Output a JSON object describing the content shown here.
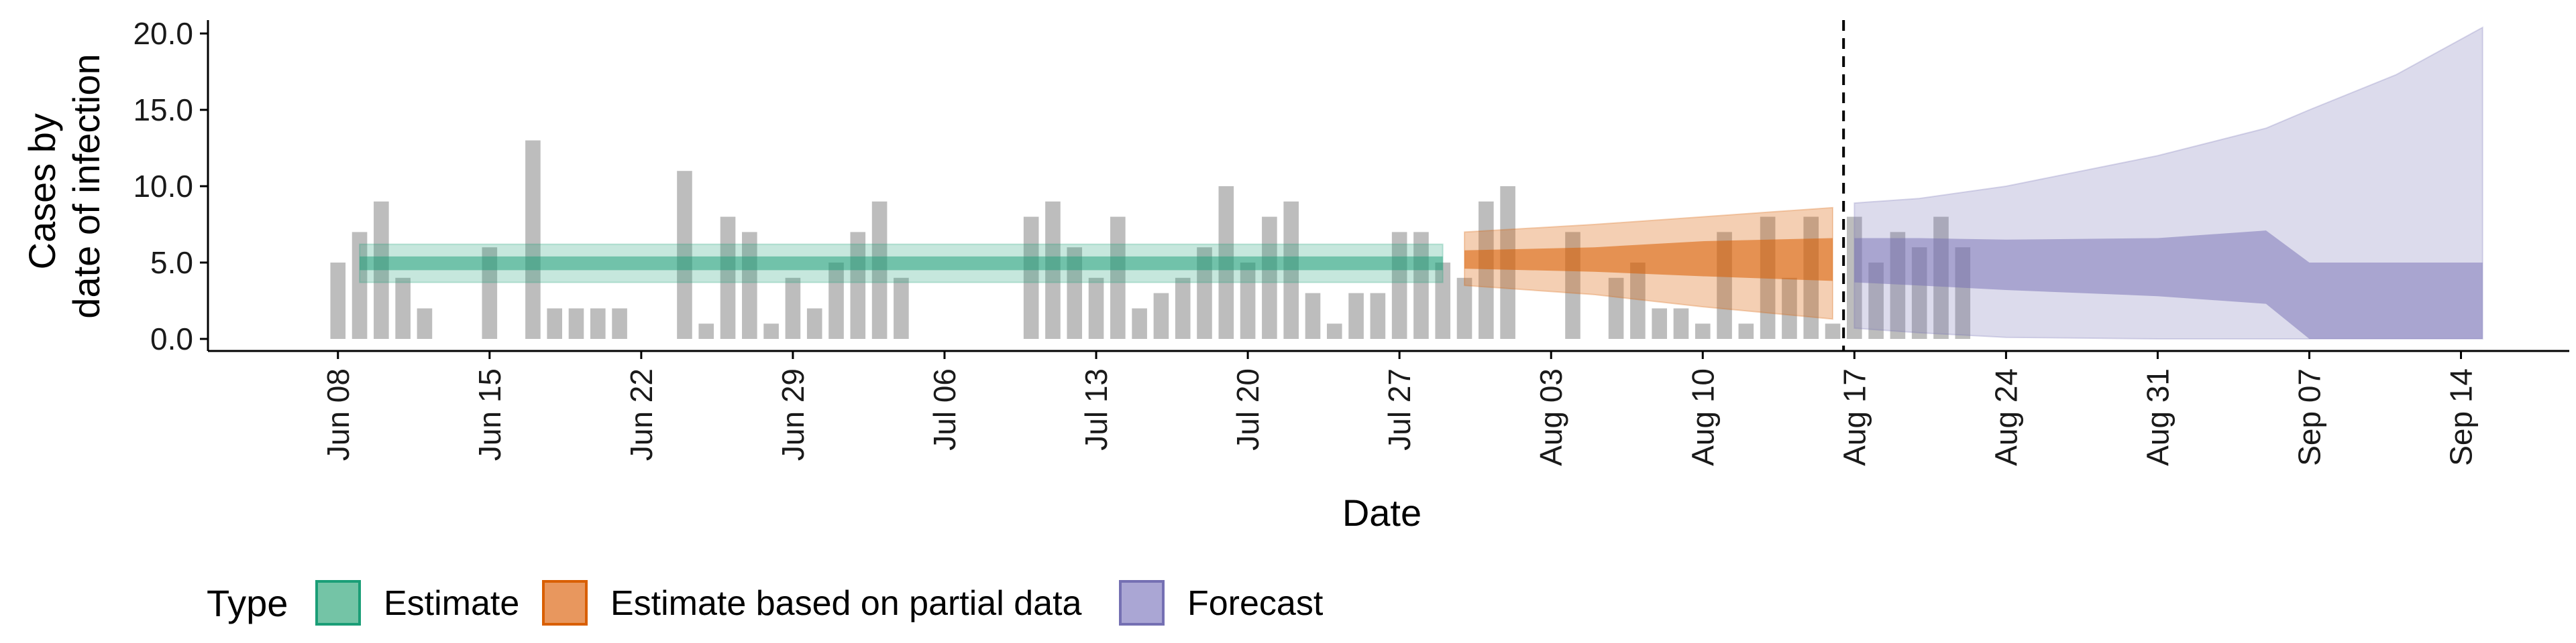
{
  "chart_data": {
    "type": "bar",
    "xlabel": "Date",
    "ylabel_lines": [
      "Cases by",
      "date of infection"
    ],
    "ylim": [
      0,
      21
    ],
    "xlim_dates": [
      "2020-06-02",
      "2020-09-19"
    ],
    "y_ticks": [
      "0.0",
      "5.0",
      "10.0",
      "15.0",
      "20.0"
    ],
    "x_ticks": [
      "Jun 08",
      "Jun 15",
      "Jun 22",
      "Jun 29",
      "Jul 06",
      "Jul 13",
      "Jul 20",
      "Jul 27",
      "Aug 03",
      "Aug 10",
      "Aug 17",
      "Aug 24",
      "Aug 31",
      "Sep 07",
      "Sep 14"
    ],
    "x_tick_dates": [
      "2020-06-08",
      "2020-06-15",
      "2020-06-22",
      "2020-06-29",
      "2020-07-06",
      "2020-07-13",
      "2020-07-20",
      "2020-07-27",
      "2020-08-03",
      "2020-08-10",
      "2020-08-17",
      "2020-08-24",
      "2020-08-31",
      "2020-09-07",
      "2020-09-14"
    ],
    "forecast_start_date": "2020-08-16",
    "grid": false,
    "legend_placement": "bottom-left",
    "reported_cases": {
      "start_date": "2020-06-08",
      "bar_color": "#bdbdbd",
      "values": [
        5,
        7,
        9,
        4,
        2,
        0,
        0,
        6,
        0,
        13,
        2,
        2,
        2,
        2,
        0,
        0,
        11,
        1,
        8,
        7,
        1,
        4,
        2,
        5,
        7,
        9,
        4,
        0,
        0,
        0,
        0,
        0,
        8,
        9,
        6,
        4,
        8,
        2,
        3,
        4,
        6,
        10,
        5,
        8,
        9,
        3,
        1,
        3,
        3,
        7,
        7,
        5,
        4,
        9,
        10,
        0,
        0,
        7,
        0,
        4,
        5,
        2,
        2,
        1,
        7,
        1,
        8,
        4,
        8,
        1,
        8,
        5,
        7,
        6,
        8,
        6
      ]
    },
    "series": [
      {
        "name": "Estimate",
        "color": "#1b9e77",
        "start_date": "2020-06-09",
        "end_date": "2020-07-29",
        "median": 5.0,
        "inner_band": [
          4.5,
          5.4
        ],
        "outer_band": [
          3.7,
          6.2
        ]
      },
      {
        "name": "Estimate based on partial data",
        "color": "#d95f02",
        "start_date": "2020-07-30",
        "end_date": "2020-08-16",
        "points": [
          {
            "date": "2020-07-30",
            "inner": [
              4.6,
              5.8
            ],
            "outer": [
              3.5,
              7.0
            ]
          },
          {
            "date": "2020-08-05",
            "inner": [
              4.4,
              6.0
            ],
            "outer": [
              2.9,
              7.5
            ]
          },
          {
            "date": "2020-08-10",
            "inner": [
              4.1,
              6.4
            ],
            "outer": [
              2.1,
              8.0
            ]
          },
          {
            "date": "2020-08-16",
            "inner": [
              3.8,
              6.6
            ],
            "outer": [
              1.3,
              8.6
            ]
          }
        ]
      },
      {
        "name": "Forecast",
        "color": "#7570b3",
        "start_date": "2020-08-17",
        "end_date": "2020-09-15",
        "points": [
          {
            "date": "2020-08-17",
            "inner": [
              3.7,
              6.6
            ],
            "outer": [
              0.7,
              8.9
            ]
          },
          {
            "date": "2020-08-20",
            "inner": [
              3.5,
              6.6
            ],
            "outer": [
              0.4,
              9.2
            ]
          },
          {
            "date": "2020-08-24",
            "inner": [
              3.2,
              6.5
            ],
            "outer": [
              0.1,
              10.0
            ]
          },
          {
            "date": "2020-08-31",
            "inner": [
              2.8,
              6.6
            ],
            "outer": [
              0.0,
              12.0
            ]
          },
          {
            "date": "2020-09-05",
            "inner": [
              2.3,
              7.1
            ],
            "outer": [
              0.0,
              13.8
            ]
          },
          {
            "date": "2020-09-07",
            "inner": [
              0.0,
              5.0
            ],
            "outer": [
              0.0,
              15.0
            ]
          },
          {
            "date": "2020-09-11",
            "inner": [
              0.0,
              5.0
            ],
            "outer": [
              0.0,
              17.3
            ]
          },
          {
            "date": "2020-09-15",
            "inner": [
              0.0,
              5.0
            ],
            "outer": [
              0.0,
              20.4
            ]
          }
        ]
      }
    ],
    "legend": {
      "title": "Type",
      "items": [
        {
          "label": "Estimate",
          "fill": "#74c4a6",
          "border": "#1b9e77"
        },
        {
          "label": "Estimate based on partial data",
          "fill": "#e8975e",
          "border": "#d95f02"
        },
        {
          "label": "Forecast",
          "fill": "#aaa6d4",
          "border": "#7570b3"
        }
      ]
    }
  }
}
